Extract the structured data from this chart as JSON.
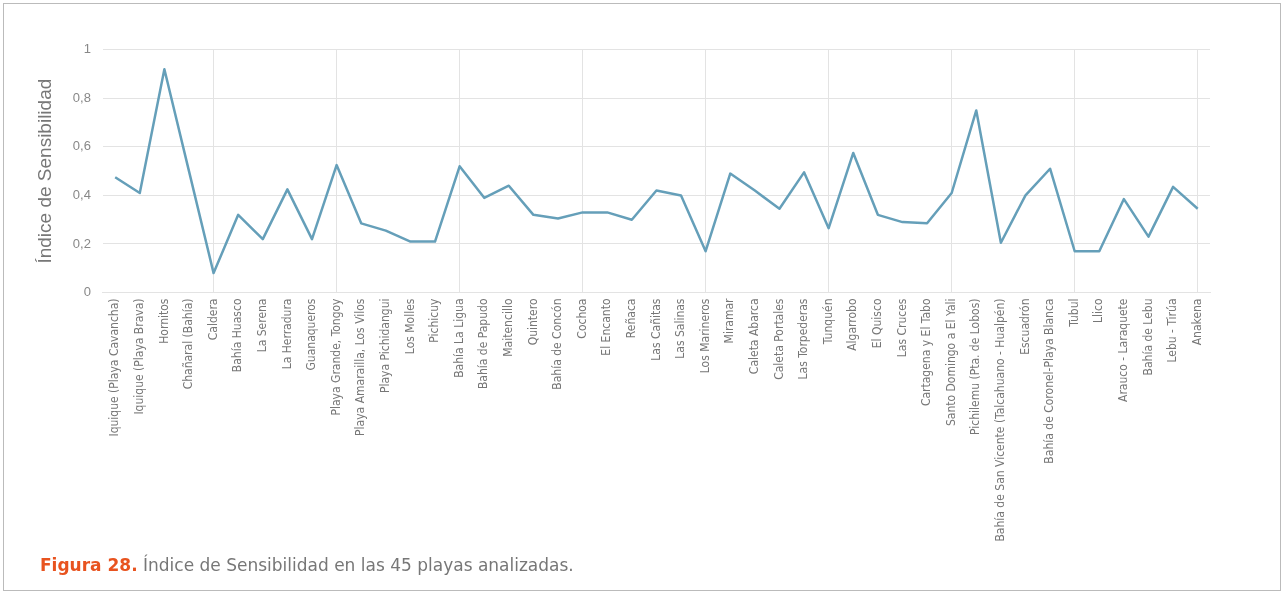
{
  "chart_data": {
    "type": "line",
    "title": "Figura 28. Índice de Sensibilidad en las 45 playas analizadas.",
    "ylabel": "Índice de Sensibilidad",
    "categories": [
      "Iquique (Playa Cavancha)",
      "Iquique (Playa Brava)",
      "Hornitos",
      "Chañaral (Bahía)",
      "Caldera",
      "Bahía Huasco",
      "La Serena",
      "La Herradura",
      "Guanaqueros",
      "Playa Grande, Tongoy",
      "Playa Amarailla, Los Vilos",
      "Playa Pichidangui",
      "Los Molles",
      "Pichicuy",
      "Bahía La Ligua",
      "Bahía de Papudo",
      "Maitencillo",
      "Quintero",
      "Bahía de Concón",
      "Cochoa",
      "El Encanto",
      "Reñaca",
      "Las Cañitas",
      "Las Salinas",
      "Los Marineros",
      "Miramar",
      "Caleta Abarca",
      "Caleta Portales",
      "Las Torpederas",
      "Tunquén",
      "Algarrobo",
      "El Quisco",
      "Las Cruces",
      "Cartagena y El Tabo",
      "Santo Domingo a El Yali",
      "Pichilemu (Pta. de Lobos)",
      "Bahía de San Vicente (Talcahuano - Hualpén)",
      "Escuadrón",
      "Bahía de Coronel-Playa Blanca",
      "Tubul",
      "Llico",
      "Arauco - Laraquete",
      "Bahía de Lebu",
      "Lebu - Tirúa",
      "Anakena"
    ],
    "series": [
      {
        "color": "#659fb9",
        "values": [
          0.475,
          0.41,
          0.92,
          0.5,
          0.08,
          0.32,
          0.22,
          0.425,
          0.22,
          0.525,
          0.285,
          0.255,
          0.21,
          0.21,
          0.52,
          0.39,
          0.44,
          0.32,
          0.305,
          0.33,
          0.33,
          0.3,
          0.42,
          0.4,
          0.17,
          0.49,
          0.42,
          0.345,
          0.495,
          0.265,
          0.575,
          0.32,
          0.29,
          0.285,
          0.41,
          0.75,
          0.205,
          0.4,
          0.51,
          0.17,
          0.17,
          0.385,
          0.23,
          0.435,
          0.345
        ]
      }
    ],
    "ylim": [
      0,
      1
    ],
    "yticks": [
      0,
      {
        "value": 0.2,
        "label": "0,2"
      },
      {
        "value": 0.4,
        "label": "0,4"
      },
      {
        "value": 0.6,
        "label": "0,6"
      },
      {
        "value": 0.8,
        "label": "0,8"
      },
      1
    ],
    "grid": true,
    "line_style": "solid",
    "marker": "none",
    "legend": false
  }
}
